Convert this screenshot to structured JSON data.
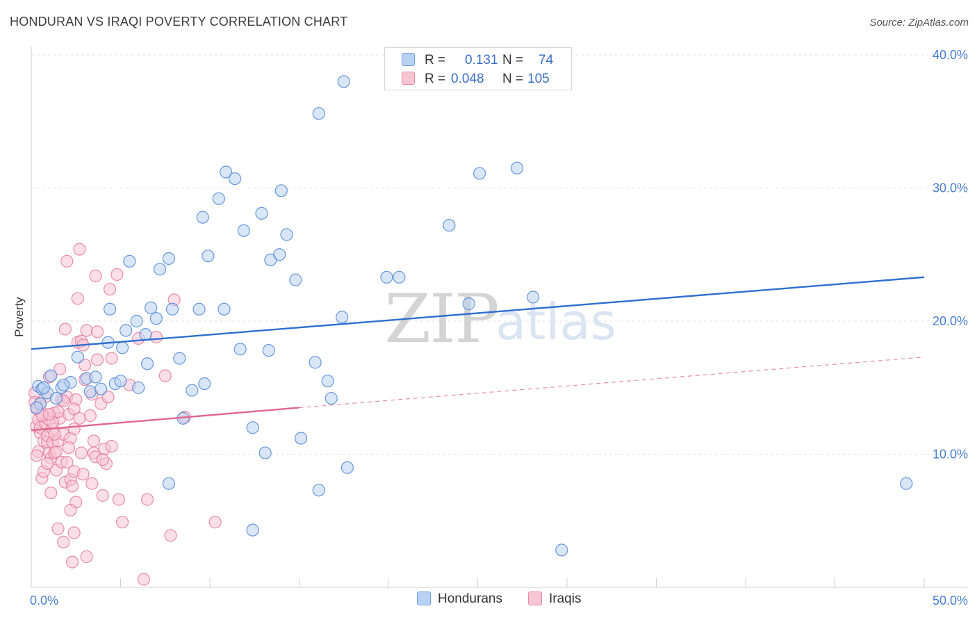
{
  "title": "HONDURAN VS IRAQI POVERTY CORRELATION CHART",
  "source": "Source: ZipAtlas.com",
  "watermark": {
    "zip": "ZIP",
    "atlas": "atlas"
  },
  "legend": {
    "rows": [
      {
        "series": "Hondurans",
        "r_label": "R =",
        "r_value": "0.131",
        "n_label": "N =",
        "n_value": "74",
        "color": "#6f9ee0",
        "fill": "#b9d1f3"
      },
      {
        "series": "Iraqis",
        "r_label": "R =",
        "r_value": "0.048",
        "n_label": "N =",
        "n_value": "105",
        "color": "#e889a8",
        "fill": "#f8c5d5"
      }
    ]
  },
  "chart_data": {
    "type": "scatter",
    "title": "HONDURAN VS IRAQI POVERTY CORRELATION CHART",
    "xlabel": "",
    "ylabel": "Poverty",
    "xlim": [
      0,
      50
    ],
    "ylim": [
      0,
      40
    ],
    "x_tick_labels": [
      "0.0%",
      "50.0%"
    ],
    "y_ticks": [
      10,
      20,
      30,
      40
    ],
    "y_tick_labels": [
      "10.0%",
      "20.0%",
      "30.0%",
      "40.0%"
    ],
    "grid": true,
    "series": [
      {
        "name": "Hondurans",
        "color": "#4f86d6",
        "fill": "#b9d1f3",
        "trend": {
          "x": [
            0,
            50
          ],
          "y": [
            17.9,
            23.3
          ],
          "style": "solid",
          "color": "#2f6fcf"
        },
        "points": [
          [
            0.4,
            15.1
          ],
          [
            0.5,
            13.8
          ],
          [
            0.6,
            14.9
          ],
          [
            0.9,
            14.6
          ],
          [
            1.1,
            15.9
          ],
          [
            1.4,
            14.2
          ],
          [
            1.7,
            15.0
          ],
          [
            2.2,
            15.4
          ],
          [
            2.6,
            17.3
          ],
          [
            3.1,
            15.7
          ],
          [
            3.3,
            14.7
          ],
          [
            3.6,
            15.8
          ],
          [
            3.9,
            14.9
          ],
          [
            4.3,
            18.4
          ],
          [
            4.4,
            20.9
          ],
          [
            4.7,
            15.3
          ],
          [
            5.0,
            15.5
          ],
          [
            5.1,
            18.0
          ],
          [
            5.3,
            19.3
          ],
          [
            5.5,
            24.5
          ],
          [
            5.9,
            20.0
          ],
          [
            6.0,
            15.0
          ],
          [
            6.4,
            19.0
          ],
          [
            6.5,
            16.8
          ],
          [
            6.7,
            21.0
          ],
          [
            7.0,
            20.2
          ],
          [
            7.2,
            23.9
          ],
          [
            7.7,
            24.7
          ],
          [
            7.9,
            20.9
          ],
          [
            8.3,
            17.2
          ],
          [
            8.5,
            12.7
          ],
          [
            9.0,
            14.8
          ],
          [
            9.4,
            20.9
          ],
          [
            9.7,
            15.3
          ],
          [
            9.6,
            27.8
          ],
          [
            9.9,
            24.9
          ],
          [
            10.5,
            29.2
          ],
          [
            10.8,
            20.9
          ],
          [
            10.9,
            31.2
          ],
          [
            11.4,
            30.7
          ],
          [
            11.7,
            17.9
          ],
          [
            11.9,
            26.8
          ],
          [
            12.4,
            12.0
          ],
          [
            12.9,
            28.1
          ],
          [
            13.1,
            10.1
          ],
          [
            13.3,
            17.8
          ],
          [
            13.4,
            24.6
          ],
          [
            13.9,
            25.0
          ],
          [
            14.0,
            29.8
          ],
          [
            14.3,
            26.5
          ],
          [
            14.8,
            23.1
          ],
          [
            15.1,
            11.2
          ],
          [
            15.9,
            16.9
          ],
          [
            16.1,
            7.3
          ],
          [
            16.1,
            35.6
          ],
          [
            16.6,
            15.5
          ],
          [
            16.8,
            14.2
          ],
          [
            17.5,
            38.0
          ],
          [
            17.4,
            20.3
          ],
          [
            17.7,
            9.0
          ],
          [
            19.9,
            23.3
          ],
          [
            20.6,
            23.3
          ],
          [
            23.4,
            27.2
          ],
          [
            24.5,
            21.3
          ],
          [
            25.1,
            31.1
          ],
          [
            27.2,
            31.5
          ],
          [
            28.1,
            21.8
          ],
          [
            29.7,
            2.8
          ],
          [
            12.4,
            4.3
          ],
          [
            7.7,
            7.8
          ],
          [
            0.3,
            13.5
          ],
          [
            0.7,
            15.0
          ],
          [
            1.8,
            15.2
          ],
          [
            49.0,
            7.8
          ]
        ]
      },
      {
        "name": "Iraqis",
        "color": "#e47a9c",
        "fill": "#f8c5d5",
        "trend": {
          "x": [
            0,
            15
          ],
          "y": [
            11.8,
            13.5
          ],
          "style": "solid",
          "color": "#e0668f",
          "extension": {
            "x": [
              15,
              50
            ],
            "y": [
              13.5,
              17.3
            ],
            "style": "dashed"
          }
        },
        "points": [
          [
            0.2,
            14.6
          ],
          [
            0.2,
            13.9
          ],
          [
            0.3,
            12.1
          ],
          [
            0.3,
            13.4
          ],
          [
            0.4,
            12.6
          ],
          [
            0.4,
            10.2
          ],
          [
            0.5,
            11.6
          ],
          [
            0.5,
            12.0
          ],
          [
            0.6,
            13.1
          ],
          [
            0.6,
            8.2
          ],
          [
            0.7,
            8.7
          ],
          [
            0.7,
            11.0
          ],
          [
            0.8,
            12.3
          ],
          [
            0.8,
            14.3
          ],
          [
            0.9,
            10.9
          ],
          [
            0.9,
            11.4
          ],
          [
            1.0,
            10.1
          ],
          [
            1.0,
            12.6
          ],
          [
            1.0,
            15.8
          ],
          [
            1.1,
            7.1
          ],
          [
            1.1,
            9.7
          ],
          [
            1.2,
            10.9
          ],
          [
            1.2,
            11.9
          ],
          [
            1.3,
            10.1
          ],
          [
            1.3,
            13.1
          ],
          [
            1.4,
            8.8
          ],
          [
            1.4,
            10.2
          ],
          [
            1.5,
            4.4
          ],
          [
            1.5,
            11.0
          ],
          [
            1.6,
            12.7
          ],
          [
            1.6,
            16.4
          ],
          [
            1.7,
            9.4
          ],
          [
            1.7,
            14.1
          ],
          [
            1.8,
            3.4
          ],
          [
            1.8,
            11.5
          ],
          [
            1.9,
            7.9
          ],
          [
            1.9,
            19.4
          ],
          [
            2.0,
            9.4
          ],
          [
            2.0,
            14.3
          ],
          [
            2.0,
            24.5
          ],
          [
            2.1,
            13.0
          ],
          [
            2.2,
            8.1
          ],
          [
            2.2,
            11.2
          ],
          [
            2.3,
            1.9
          ],
          [
            2.3,
            7.6
          ],
          [
            2.4,
            4.1
          ],
          [
            2.4,
            8.7
          ],
          [
            2.4,
            11.9
          ],
          [
            2.5,
            6.4
          ],
          [
            2.5,
            14.1
          ],
          [
            2.6,
            18.4
          ],
          [
            2.6,
            21.7
          ],
          [
            2.7,
            25.4
          ],
          [
            2.8,
            10.1
          ],
          [
            2.8,
            18.5
          ],
          [
            2.9,
            8.5
          ],
          [
            2.9,
            18.2
          ],
          [
            3.0,
            15.6
          ],
          [
            3.1,
            2.3
          ],
          [
            3.1,
            19.3
          ],
          [
            3.3,
            12.9
          ],
          [
            3.4,
            7.8
          ],
          [
            3.5,
            10.1
          ],
          [
            3.5,
            11.0
          ],
          [
            3.6,
            9.8
          ],
          [
            3.6,
            23.4
          ],
          [
            3.7,
            17.1
          ],
          [
            3.7,
            19.2
          ],
          [
            3.9,
            13.8
          ],
          [
            4.0,
            6.9
          ],
          [
            4.1,
            10.4
          ],
          [
            4.2,
            9.3
          ],
          [
            4.3,
            14.3
          ],
          [
            4.4,
            22.4
          ],
          [
            4.5,
            10.6
          ],
          [
            4.5,
            17.2
          ],
          [
            4.8,
            23.5
          ],
          [
            4.9,
            6.6
          ],
          [
            5.1,
            4.9
          ],
          [
            5.5,
            15.2
          ],
          [
            6.0,
            18.7
          ],
          [
            6.3,
            0.6
          ],
          [
            6.5,
            6.6
          ],
          [
            7.0,
            18.8
          ],
          [
            7.5,
            15.9
          ],
          [
            7.8,
            3.9
          ],
          [
            8.0,
            21.6
          ],
          [
            8.6,
            12.8
          ],
          [
            10.3,
            4.9
          ],
          [
            0.3,
            9.9
          ],
          [
            0.6,
            12.9
          ],
          [
            0.9,
            9.3
          ],
          [
            1.2,
            12.4
          ],
          [
            1.5,
            13.2
          ],
          [
            1.8,
            14.0
          ],
          [
            2.1,
            10.5
          ],
          [
            2.4,
            13.4
          ],
          [
            2.7,
            12.7
          ],
          [
            3.0,
            16.7
          ],
          [
            3.4,
            14.5
          ],
          [
            1.0,
            13.0
          ],
          [
            0.5,
            13.8
          ],
          [
            1.3,
            11.5
          ],
          [
            2.2,
            5.8
          ],
          [
            4.0,
            9.6
          ]
        ]
      }
    ]
  }
}
